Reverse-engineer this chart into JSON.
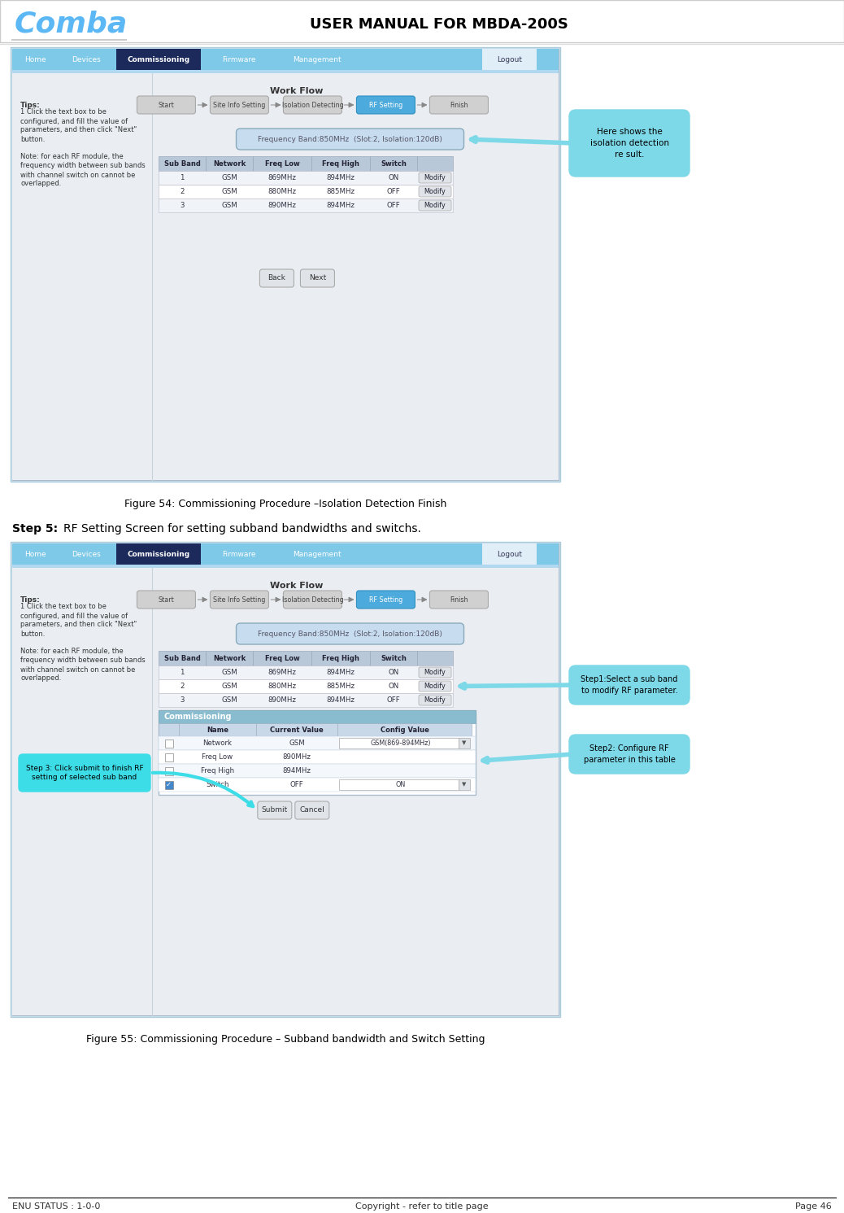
{
  "title": "USER MANUAL FOR MBDA-200S",
  "comba_color": "#5BB8F5",
  "bg_color": "#FFFFFF",
  "footer_left": "ENU STATUS : 1-0-0",
  "footer_center": "Copyright - refer to title page",
  "footer_right": "Page 46",
  "fig1_caption": "Figure 54: Commissioning Procedure –Isolation Detection Finish",
  "step5_label": "Step 5:",
  "step5_text": "RF Setting Screen for setting subband bandwidths and switchs.",
  "fig2_caption": "Figure 55: Commissioning Procedure – Subband bandwidth and Switch Setting",
  "nav_items": [
    "Home",
    "Devices",
    "Commissioning",
    "Firmware",
    "Management",
    "Logout"
  ],
  "nav_active": "Commissioning",
  "workflow_steps": [
    "Start",
    "Site Info Setting",
    "Isolation Detecting",
    "RF Setting",
    "Finish"
  ],
  "workflow_active": "RF Setting",
  "freq_band_label": "Frequency Band:850MHz  (Slot:2, Isolation:120dB)",
  "table1_headers": [
    "Sub Band",
    "Network",
    "Freq Low",
    "Freq High",
    "Switch"
  ],
  "table1_rows": [
    [
      "1",
      "GSM",
      "869MHz",
      "894MHz",
      "ON"
    ],
    [
      "2",
      "GSM",
      "880MHz",
      "885MHz",
      "OFF"
    ],
    [
      "3",
      "GSM",
      "890MHz",
      "894MHz",
      "OFF"
    ]
  ],
  "table2_rows": [
    [
      "1",
      "GSM",
      "869MHz",
      "894MHz",
      "ON"
    ],
    [
      "2",
      "GSM",
      "880MHz",
      "885MHz",
      "ON"
    ],
    [
      "3",
      "GSM",
      "890MHz",
      "894MHz",
      "OFF"
    ]
  ],
  "callout1_text": "Here shows the\nisolation detection\nre sult.",
  "tips_title": "Tips:",
  "tips_line1": "1 Click the text box to be",
  "tips_line2": "configured, and fill the value of",
  "tips_line3": "parameters, and then click \"Next\"",
  "tips_line4": "button.",
  "tips_line5": "",
  "tips_line6": "Note: for each RF module, the",
  "tips_line7": "frequency width between sub bands",
  "tips_line8": "with channel switch on cannot be",
  "tips_line9": "overlapped.",
  "commissioning_label": "Commissioning",
  "commissioning_headers": [
    "Name",
    "Current Value",
    "Config Value"
  ],
  "commissioning_rows": [
    [
      "Network",
      "GSM",
      "GSM(869-894MHz)",
      true
    ],
    [
      "Freq Low",
      "890MHz",
      "",
      false
    ],
    [
      "Freq High",
      "894MHz",
      "",
      false
    ],
    [
      "Switch",
      "OFF",
      "ON",
      true
    ]
  ],
  "callout2_text": "Step1:Select a sub band\nto modify RF parameter.",
  "callout3_text": "Step2: Configure RF\nparameter in this table",
  "step3_text": "Step 3: Click submit to finish RF\nsetting of selected sub band",
  "nav_bg": "#7EC8E8",
  "nav_active_bg": "#1B2A5A",
  "screen_outer_bg": "#D8E8F0",
  "screen_inner_bg": "#EAEEF2",
  "table_header_bg": "#B8C8D8",
  "callout_bg": "#7DD8E8",
  "workflow_active_bg": "#4DAADC",
  "workflow_inactive_bg": "#D0D0D0",
  "tips_panel_bg": "#E8EEF4",
  "tips_divider_color": "#C8D4DC"
}
